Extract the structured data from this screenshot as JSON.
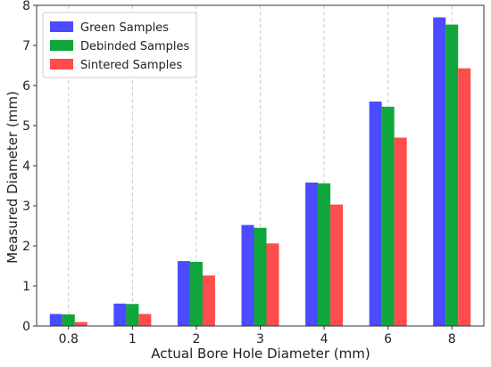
{
  "chart_data": {
    "type": "bar",
    "categories": [
      "0.8",
      "1",
      "2",
      "3",
      "4",
      "6",
      "8"
    ],
    "series": [
      {
        "name": "Green Samples",
        "color": "#4b4bff",
        "values": [
          0.3,
          0.56,
          1.62,
          2.52,
          3.58,
          5.6,
          7.7
        ]
      },
      {
        "name": "Debinded Samples",
        "color": "#0fa63c",
        "values": [
          0.29,
          0.55,
          1.6,
          2.45,
          3.56,
          5.47,
          7.52
        ]
      },
      {
        "name": "Sintered Samples",
        "color": "#ff4c4c",
        "values": [
          0.1,
          0.3,
          1.26,
          2.06,
          3.03,
          4.7,
          6.43
        ]
      }
    ],
    "title": "",
    "xlabel": "Actual Bore Hole Diameter (mm)",
    "ylabel": "Measured Diameter (mm)",
    "ylim": [
      0,
      8
    ],
    "yticks": [
      0,
      1,
      2,
      3,
      4,
      5,
      6,
      7,
      8
    ],
    "grid": "vertical-dashed",
    "legend_position": "top-left"
  }
}
